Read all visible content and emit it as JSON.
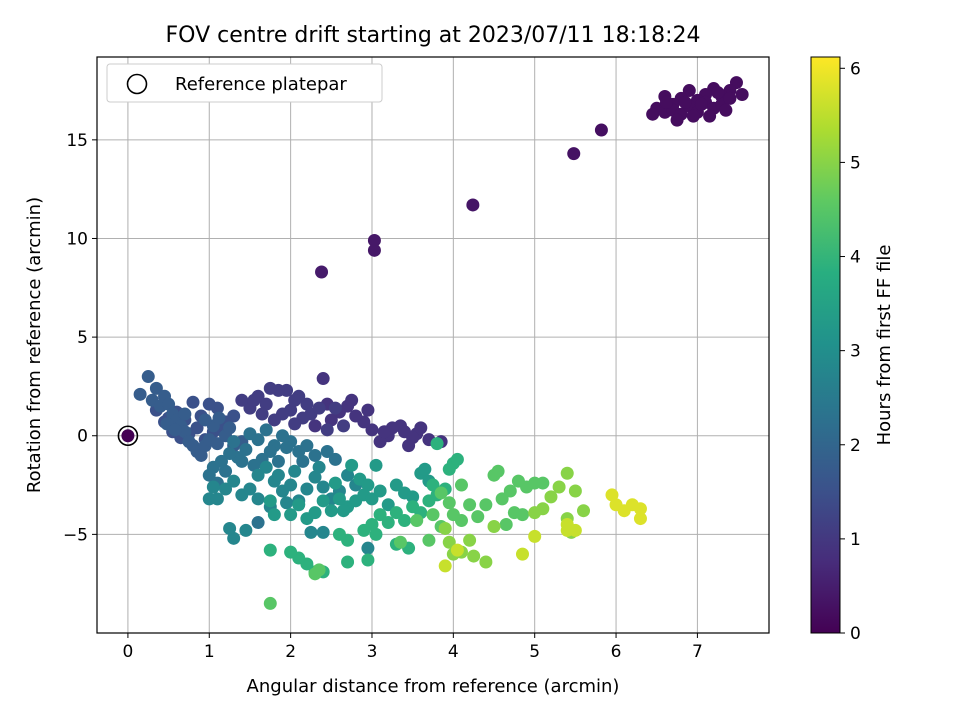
{
  "chart_data": {
    "type": "scatter",
    "title": "FOV centre drift starting at 2023/07/11 18:18:24",
    "xlabel": "Angular distance from reference (arcmin)",
    "ylabel": "Rotation from reference (arcmin)",
    "xlim": [
      -0.38,
      7.88
    ],
    "ylim": [
      -10.0,
      19.2
    ],
    "xticks": [
      0,
      1,
      2,
      3,
      4,
      5,
      6,
      7
    ],
    "yticks": [
      -5,
      0,
      5,
      10,
      15
    ],
    "grid": true,
    "legend": {
      "position": "top-left",
      "entries": [
        "Reference platepar"
      ]
    },
    "colorbar": {
      "label": "Hours from first FF file",
      "range": [
        0,
        6.12
      ],
      "ticks": [
        0,
        1,
        2,
        3,
        4,
        5,
        6
      ],
      "colormap": "viridis"
    },
    "reference_point": {
      "x": 0,
      "y": 0,
      "hours": 0
    },
    "points": [
      [
        7.48,
        17.9,
        0.2
      ],
      [
        7.4,
        17.5,
        0.2
      ],
      [
        7.3,
        17.2,
        0.2
      ],
      [
        7.2,
        17.6,
        0.2
      ],
      [
        7.1,
        17.3,
        0.2
      ],
      [
        7.0,
        17.0,
        0.2
      ],
      [
        6.9,
        17.5,
        0.2
      ],
      [
        6.8,
        17.1,
        0.2
      ],
      [
        6.7,
        16.8,
        0.2
      ],
      [
        6.6,
        17.2,
        0.2
      ],
      [
        6.5,
        16.6,
        0.2
      ],
      [
        6.45,
        16.3,
        0.2
      ],
      [
        6.6,
        16.4,
        0.2
      ],
      [
        6.7,
        16.5,
        0.2
      ],
      [
        6.8,
        16.3,
        0.2
      ],
      [
        6.9,
        16.7,
        0.2
      ],
      [
        7.0,
        16.4,
        0.2
      ],
      [
        7.1,
        16.9,
        0.2
      ],
      [
        7.2,
        16.6,
        0.2
      ],
      [
        7.3,
        16.8,
        0.2
      ],
      [
        7.4,
        17.1,
        0.2
      ],
      [
        7.55,
        17.3,
        0.2
      ],
      [
        6.95,
        16.2,
        0.2
      ],
      [
        7.05,
        16.8,
        0.2
      ],
      [
        7.15,
        16.2,
        0.2
      ],
      [
        6.75,
        16.0,
        0.2
      ],
      [
        6.85,
        16.9,
        0.2
      ],
      [
        7.35,
        16.5,
        0.2
      ],
      [
        6.62,
        16.9,
        0.2
      ],
      [
        7.25,
        17.4,
        0.2
      ],
      [
        5.82,
        15.5,
        0.25
      ],
      [
        5.48,
        14.3,
        0.3
      ],
      [
        4.24,
        11.7,
        0.35
      ],
      [
        3.03,
        9.9,
        0.4
      ],
      [
        3.03,
        9.4,
        0.4
      ],
      [
        2.38,
        8.3,
        0.45
      ],
      [
        3.85,
        -0.3,
        0.9
      ],
      [
        3.7,
        -0.2,
        0.9
      ],
      [
        3.55,
        0.1,
        0.9
      ],
      [
        3.45,
        -0.5,
        0.9
      ],
      [
        3.35,
        0.5,
        0.9
      ],
      [
        3.2,
        0.0,
        0.9
      ],
      [
        3.1,
        -0.3,
        0.9
      ],
      [
        3.0,
        0.3,
        0.9
      ],
      [
        2.9,
        0.7,
        0.9
      ],
      [
        2.8,
        1.0,
        0.9
      ],
      [
        2.7,
        1.5,
        0.9
      ],
      [
        2.6,
        1.2,
        0.9
      ],
      [
        2.5,
        0.8,
        0.9
      ],
      [
        2.4,
        2.9,
        0.9
      ],
      [
        2.3,
        0.5,
        0.9
      ],
      [
        3.25,
        0.4,
        0.9
      ],
      [
        3.6,
        0.4,
        0.9
      ],
      [
        3.4,
        0.2,
        0.9
      ],
      [
        2.95,
        1.3,
        0.9
      ],
      [
        2.75,
        1.8,
        0.9
      ],
      [
        2.45,
        1.6,
        0.9
      ],
      [
        3.15,
        0.2,
        0.9
      ],
      [
        3.5,
        -0.1,
        0.9
      ],
      [
        2.2,
        1.6,
        1.1
      ],
      [
        2.1,
        2.0,
        1.1
      ],
      [
        2.0,
        1.3,
        1.1
      ],
      [
        1.95,
        2.3,
        1.1
      ],
      [
        1.85,
        2.3,
        1.1
      ],
      [
        1.75,
        2.4,
        1.1
      ],
      [
        1.7,
        1.6,
        1.1
      ],
      [
        1.6,
        2.0,
        1.1
      ],
      [
        1.5,
        1.4,
        1.1
      ],
      [
        1.4,
        1.8,
        1.1
      ],
      [
        2.25,
        1.1,
        1.1
      ],
      [
        2.35,
        1.4,
        1.1
      ],
      [
        2.15,
        0.9,
        1.1
      ],
      [
        1.9,
        1.1,
        1.1
      ],
      [
        1.8,
        0.8,
        1.1
      ],
      [
        2.05,
        0.6,
        1.1
      ],
      [
        2.55,
        1.4,
        1.1
      ],
      [
        2.65,
        0.5,
        1.1
      ],
      [
        1.65,
        1.1,
        1.1
      ],
      [
        2.05,
        1.8,
        1.1
      ],
      [
        1.55,
        1.8,
        1.1
      ],
      [
        2.45,
        0.3,
        1.1
      ],
      [
        1.3,
        1.0,
        1.5
      ],
      [
        1.2,
        0.7,
        1.5
      ],
      [
        1.1,
        1.4,
        1.5
      ],
      [
        1.0,
        1.6,
        1.5
      ],
      [
        0.9,
        1.0,
        1.5
      ],
      [
        0.8,
        1.7,
        1.5
      ],
      [
        0.7,
        0.8,
        1.5
      ],
      [
        0.6,
        1.2,
        1.5
      ],
      [
        0.5,
        0.9,
        1.5
      ],
      [
        1.15,
        0.3,
        1.5
      ],
      [
        1.05,
        0.2,
        1.5
      ],
      [
        0.95,
        -0.2,
        1.5
      ],
      [
        0.85,
        0.4,
        1.5
      ],
      [
        0.75,
        0.1,
        1.5
      ],
      [
        0.65,
        -0.1,
        1.5
      ],
      [
        0.55,
        0.2,
        1.5
      ],
      [
        0.45,
        0.7,
        1.5
      ],
      [
        0.35,
        1.3,
        1.5
      ],
      [
        0.25,
        3.0,
        1.8
      ],
      [
        0.35,
        2.4,
        1.8
      ],
      [
        0.45,
        2.0,
        1.8
      ],
      [
        0.15,
        2.1,
        1.8
      ],
      [
        0.3,
        1.8,
        1.8
      ],
      [
        0.4,
        1.5,
        1.8
      ],
      [
        0.5,
        1.6,
        1.8
      ],
      [
        0.55,
        1.1,
        1.8
      ],
      [
        0.6,
        0.8,
        1.8
      ],
      [
        0.65,
        0.5,
        1.8
      ],
      [
        0.7,
        0.2,
        1.8
      ],
      [
        0.75,
        -0.3,
        1.8
      ],
      [
        0.8,
        -0.5,
        1.8
      ],
      [
        0.85,
        -0.8,
        1.8
      ],
      [
        0.9,
        -1.0,
        1.8
      ],
      [
        0.95,
        -0.5,
        1.8
      ],
      [
        1.0,
        -0.2,
        1.8
      ],
      [
        1.05,
        0.5,
        1.8
      ],
      [
        1.1,
        -0.4,
        1.8
      ],
      [
        1.2,
        0.0,
        1.8
      ],
      [
        1.3,
        -0.5,
        1.8
      ],
      [
        1.4,
        -0.3,
        1.8
      ],
      [
        0.95,
        0.8,
        1.8
      ],
      [
        0.7,
        1.1,
        1.8
      ],
      [
        0.48,
        0.6,
        1.8
      ],
      [
        0.58,
        0.3,
        1.8
      ],
      [
        1.12,
        0.9,
        1.8
      ],
      [
        1.25,
        0.4,
        1.8
      ],
      [
        1.5,
        0.1,
        2.3
      ],
      [
        1.6,
        -0.2,
        2.3
      ],
      [
        1.7,
        0.3,
        2.3
      ],
      [
        1.8,
        -0.5,
        2.3
      ],
      [
        1.9,
        0.0,
        2.3
      ],
      [
        2.0,
        -0.3,
        2.3
      ],
      [
        2.1,
        -0.8,
        2.3
      ],
      [
        2.2,
        -0.5,
        2.3
      ],
      [
        2.3,
        -1.0,
        2.3
      ],
      [
        1.45,
        -0.7,
        2.3
      ],
      [
        1.35,
        -1.1,
        2.3
      ],
      [
        1.25,
        -0.9,
        2.3
      ],
      [
        1.15,
        -1.3,
        2.3
      ],
      [
        1.05,
        -1.6,
        2.3
      ],
      [
        1.0,
        -2.0,
        2.3
      ],
      [
        1.1,
        -2.4,
        2.3
      ],
      [
        1.2,
        -1.8,
        2.3
      ],
      [
        1.55,
        -1.5,
        2.3
      ],
      [
        1.65,
        -1.2,
        2.3
      ],
      [
        1.75,
        -0.8,
        2.3
      ],
      [
        1.85,
        -1.3,
        2.3
      ],
      [
        2.45,
        -0.8,
        2.3
      ],
      [
        2.55,
        -1.2,
        2.3
      ],
      [
        1.6,
        -4.4,
        2.3
      ],
      [
        1.3,
        -0.3,
        2.3
      ],
      [
        1.4,
        -1.3,
        2.3
      ],
      [
        1.95,
        -0.6,
        2.3
      ],
      [
        2.15,
        -1.3,
        2.3
      ],
      [
        1.0,
        -3.2,
        2.8
      ],
      [
        1.1,
        -3.2,
        2.8
      ],
      [
        1.05,
        -2.6,
        2.8
      ],
      [
        1.2,
        -2.7,
        2.8
      ],
      [
        1.3,
        -2.3,
        2.8
      ],
      [
        1.4,
        -3.0,
        2.8
      ],
      [
        1.5,
        -2.7,
        2.8
      ],
      [
        1.6,
        -2.0,
        2.8
      ],
      [
        1.7,
        -1.6,
        2.8
      ],
      [
        1.8,
        -2.3,
        2.8
      ],
      [
        1.9,
        -2.8,
        2.8
      ],
      [
        2.0,
        -2.5,
        2.8
      ],
      [
        2.1,
        -3.3,
        2.8
      ],
      [
        2.2,
        -2.7,
        2.8
      ],
      [
        2.3,
        -2.1,
        2.8
      ],
      [
        2.4,
        -2.6,
        2.8
      ],
      [
        2.5,
        -3.2,
        2.8
      ],
      [
        2.6,
        -2.8,
        2.8
      ],
      [
        2.7,
        -2.0,
        2.8
      ],
      [
        2.8,
        -2.5,
        2.8
      ],
      [
        1.45,
        -4.8,
        2.8
      ],
      [
        1.3,
        -5.2,
        2.8
      ],
      [
        1.25,
        -4.7,
        2.8
      ],
      [
        1.6,
        -3.2,
        2.8
      ],
      [
        1.75,
        -3.6,
        2.8
      ],
      [
        1.85,
        -2.0,
        2.8
      ],
      [
        1.95,
        -3.4,
        2.8
      ],
      [
        2.25,
        -4.9,
        2.8
      ],
      [
        2.4,
        -4.9,
        2.8
      ],
      [
        2.95,
        -5.7,
        2.8
      ],
      [
        2.05,
        -1.8,
        2.8
      ],
      [
        2.35,
        -1.6,
        2.8
      ],
      [
        2.0,
        -4.0,
        3.3
      ],
      [
        2.1,
        -3.5,
        3.3
      ],
      [
        2.2,
        -4.2,
        3.3
      ],
      [
        2.3,
        -3.9,
        3.3
      ],
      [
        2.4,
        -3.3,
        3.3
      ],
      [
        2.5,
        -3.8,
        3.3
      ],
      [
        2.6,
        -3.2,
        3.3
      ],
      [
        2.7,
        -3.6,
        3.3
      ],
      [
        2.8,
        -3.3,
        3.3
      ],
      [
        2.9,
        -3.0,
        3.3
      ],
      [
        3.0,
        -3.2,
        3.3
      ],
      [
        3.1,
        -2.8,
        3.3
      ],
      [
        3.2,
        -3.5,
        3.3
      ],
      [
        3.3,
        -2.5,
        3.3
      ],
      [
        3.4,
        -2.9,
        3.3
      ],
      [
        3.5,
        -3.1,
        3.3
      ],
      [
        3.6,
        -1.9,
        3.3
      ],
      [
        3.7,
        -2.3,
        3.3
      ],
      [
        1.8,
        -4.0,
        3.3
      ],
      [
        1.75,
        -3.3,
        3.3
      ],
      [
        2.65,
        -3.8,
        3.3
      ],
      [
        2.85,
        -2.2,
        3.3
      ],
      [
        2.55,
        -2.4,
        3.3
      ],
      [
        2.95,
        -2.5,
        3.3
      ],
      [
        3.05,
        -1.5,
        3.3
      ],
      [
        2.75,
        -1.5,
        3.3
      ],
      [
        3.65,
        -1.7,
        3.3
      ],
      [
        3.0,
        -4.5,
        3.9
      ],
      [
        3.1,
        -4.0,
        3.9
      ],
      [
        3.2,
        -4.4,
        3.9
      ],
      [
        3.3,
        -3.9,
        3.9
      ],
      [
        3.4,
        -4.3,
        3.9
      ],
      [
        3.5,
        -3.6,
        3.9
      ],
      [
        3.6,
        -3.9,
        3.9
      ],
      [
        3.7,
        -3.3,
        3.9
      ],
      [
        3.8,
        -3.0,
        3.9
      ],
      [
        3.9,
        -2.7,
        3.9
      ],
      [
        4.0,
        -1.4,
        3.9
      ],
      [
        4.05,
        -1.2,
        3.9
      ],
      [
        3.95,
        -1.7,
        3.9
      ],
      [
        3.75,
        -2.5,
        3.9
      ],
      [
        3.45,
        -5.7,
        3.9
      ],
      [
        3.3,
        -5.5,
        3.9
      ],
      [
        3.05,
        -5.0,
        3.9
      ],
      [
        2.9,
        -4.8,
        3.9
      ],
      [
        2.7,
        -5.3,
        3.9
      ],
      [
        2.6,
        -5.0,
        3.9
      ],
      [
        2.4,
        -6.9,
        3.9
      ],
      [
        2.3,
        -6.9,
        3.9
      ],
      [
        2.2,
        -6.5,
        3.9
      ],
      [
        2.1,
        -6.2,
        3.9
      ],
      [
        2.0,
        -5.9,
        3.9
      ],
      [
        1.75,
        -5.8,
        3.9
      ],
      [
        2.95,
        -6.3,
        3.9
      ],
      [
        2.7,
        -6.4,
        3.9
      ],
      [
        3.8,
        -0.4,
        3.9
      ],
      [
        4.0,
        -4.0,
        4.5
      ],
      [
        4.1,
        -4.3,
        4.5
      ],
      [
        4.2,
        -3.5,
        4.5
      ],
      [
        4.3,
        -4.1,
        4.5
      ],
      [
        4.4,
        -3.5,
        4.5
      ],
      [
        4.5,
        -2.0,
        4.5
      ],
      [
        4.55,
        -1.8,
        4.5
      ],
      [
        4.6,
        -3.2,
        4.5
      ],
      [
        4.7,
        -2.8,
        4.5
      ],
      [
        4.8,
        -2.3,
        4.5
      ],
      [
        4.9,
        -2.6,
        4.5
      ],
      [
        5.0,
        -2.4,
        4.5
      ],
      [
        5.1,
        -2.4,
        4.5
      ],
      [
        4.75,
        -3.9,
        4.5
      ],
      [
        4.85,
        -4.0,
        4.5
      ],
      [
        4.65,
        -4.5,
        4.5
      ],
      [
        3.85,
        -4.6,
        4.5
      ],
      [
        3.75,
        -4.0,
        4.5
      ],
      [
        3.7,
        -5.3,
        4.5
      ],
      [
        3.35,
        -5.4,
        4.5
      ],
      [
        2.3,
        -7.0,
        4.5
      ],
      [
        2.35,
        -6.8,
        4.5
      ],
      [
        3.55,
        -4.3,
        4.5
      ],
      [
        3.85,
        -2.9,
        4.5
      ],
      [
        4.1,
        -2.5,
        4.5
      ],
      [
        3.95,
        -3.4,
        4.5
      ],
      [
        1.75,
        -8.5,
        4.5
      ],
      [
        4.5,
        -4.6,
        5.0
      ],
      [
        5.0,
        -3.9,
        5.0
      ],
      [
        5.1,
        -3.7,
        5.0
      ],
      [
        5.2,
        -3.1,
        5.0
      ],
      [
        5.3,
        -2.6,
        5.0
      ],
      [
        5.4,
        -1.9,
        5.0
      ],
      [
        5.5,
        -2.8,
        5.0
      ],
      [
        5.6,
        -3.8,
        5.0
      ],
      [
        4.0,
        -6.0,
        5.0
      ],
      [
        4.1,
        -5.9,
        5.0
      ],
      [
        4.2,
        -5.3,
        5.0
      ],
      [
        3.95,
        -5.4,
        5.0
      ],
      [
        3.9,
        -4.7,
        5.0
      ],
      [
        4.25,
        -6.1,
        5.0
      ],
      [
        4.4,
        -6.4,
        5.0
      ],
      [
        5.4,
        -4.2,
        5.0
      ],
      [
        5.45,
        -4.9,
        5.0
      ],
      [
        5.0,
        -5.1,
        5.6
      ],
      [
        4.85,
        -6.0,
        5.6
      ],
      [
        5.4,
        -4.8,
        5.6
      ],
      [
        5.5,
        -4.8,
        5.6
      ],
      [
        5.4,
        -4.5,
        5.6
      ],
      [
        3.9,
        -6.6,
        5.6
      ],
      [
        4.05,
        -5.8,
        5.6
      ],
      [
        6.0,
        -3.5,
        5.8
      ],
      [
        6.1,
        -3.8,
        5.8
      ],
      [
        6.2,
        -3.5,
        5.8
      ],
      [
        6.3,
        -3.7,
        5.8
      ],
      [
        6.3,
        -4.2,
        5.8
      ],
      [
        5.95,
        -3.0,
        5.8
      ]
    ]
  }
}
